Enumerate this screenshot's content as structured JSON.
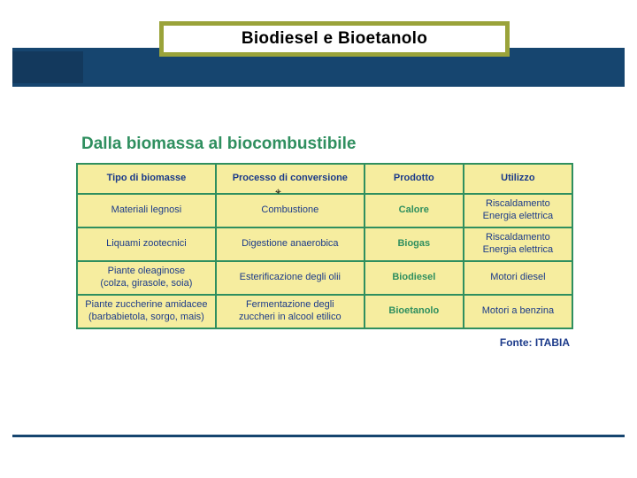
{
  "colors": {
    "navy": "#16456f",
    "olive_border": "#9aa33a",
    "title_text": "#2f8f5f",
    "table_border": "#2f8f5f",
    "table_bg": "#f6ed9f",
    "header_text": "#1b3a8a",
    "body_text": "#1b3a8a",
    "product_text": "#2f8f5f",
    "source_text": "#1b3a8a"
  },
  "slide": {
    "title": "Biodiesel e Bioetanolo"
  },
  "figure": {
    "title": "Dalla biomassa al biocombustibile",
    "source": "Fonte: ITABIA",
    "headers": {
      "biomass": "Tipo di biomasse",
      "process": "Processo di conversione",
      "product": "Prodotto",
      "use": "Utilizzo"
    },
    "rows": [
      {
        "biomass": "Materiali legnosi",
        "process": "Combustione",
        "product": "Calore",
        "use": "Riscaldamento\nEnergia elettrica"
      },
      {
        "biomass": "Liquami zootecnici",
        "process": "Digestione anaerobica",
        "product": "Biogas",
        "use": "Riscaldamento\nEnergia elettrica"
      },
      {
        "biomass": "Piante oleaginose\n(colza, girasole, soia)",
        "process": "Esterificazione degli olii",
        "product": "Biodiesel",
        "use": "Motori diesel"
      },
      {
        "biomass": "Piante zuccherine amidacee\n(barbabietola, sorgo, mais)",
        "process": "Fermentazione degli\nzuccheri in alcool etilico",
        "product": "Bioetanolo",
        "use": "Motori a benzina"
      }
    ]
  }
}
